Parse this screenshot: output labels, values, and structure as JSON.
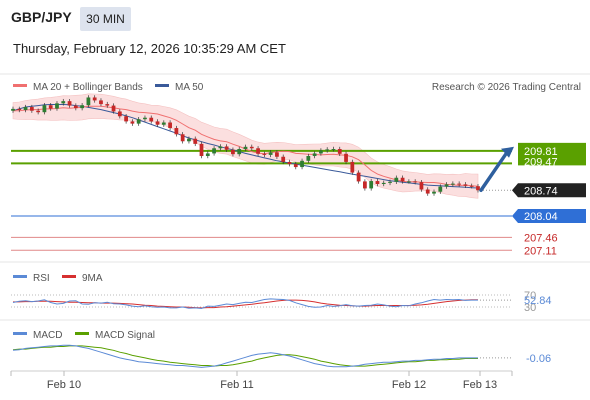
{
  "header": {
    "symbol": "GBP/JPY",
    "timeframe": "30 MIN",
    "datetime": "Thursday, February 12, 2026 10:35:29 AM CET"
  },
  "legend": {
    "ma20": "MA 20 + Bollinger Bands",
    "ma50": "MA 50",
    "credit": "Research © 2026 Trading Central",
    "rsi": "RSI",
    "rsi_ma": "9MA",
    "macd": "MACD",
    "macd_signal": "MACD Signal"
  },
  "colors": {
    "ma20": "#f07070",
    "ma50": "#3a5a9a",
    "bollinger_fill": "#fbdada",
    "resistance": "#5aa000",
    "support": "#2f6fd6",
    "support_secondary": "#e08888",
    "arrow": "#2e5f9e",
    "rsi": "#5b8ad6",
    "rsi_ma": "#d63030",
    "macd": "#5b8ad6",
    "macd_signal": "#5aa000",
    "candle_up": "#2e7d32",
    "candle_down": "#c62828"
  },
  "chart_data": [
    {
      "type": "candlestick",
      "name": "price",
      "x_axis": [
        "Feb 10",
        "Feb 11",
        "Feb 12",
        "Feb 13"
      ],
      "ylim": [
        206.9,
        211.3
      ],
      "levels": [
        {
          "label": "209.81",
          "value": 209.81,
          "kind": "resistance"
        },
        {
          "label": "209.47",
          "value": 209.47,
          "kind": "resistance"
        },
        {
          "label": "208.74",
          "value": 208.74,
          "kind": "last"
        },
        {
          "label": "208.04",
          "value": 208.04,
          "kind": "support"
        },
        {
          "label": "207.46",
          "value": 207.46,
          "kind": "support"
        },
        {
          "label": "207.11",
          "value": 207.11,
          "kind": "support"
        }
      ],
      "close": [
        210.95,
        210.92,
        211.0,
        210.9,
        210.86,
        211.05,
        210.96,
        211.1,
        211.16,
        211.04,
        210.97,
        211.05,
        211.26,
        211.18,
        211.08,
        211.04,
        210.88,
        210.75,
        210.61,
        210.55,
        210.67,
        210.71,
        210.61,
        210.52,
        210.58,
        210.43,
        210.26,
        210.07,
        210.14,
        210.0,
        209.67,
        209.74,
        209.88,
        209.93,
        209.84,
        209.72,
        209.86,
        209.92,
        209.88,
        209.73,
        209.7,
        209.77,
        209.65,
        209.51,
        209.45,
        209.37,
        209.54,
        209.67,
        209.74,
        209.82,
        209.85,
        209.86,
        209.73,
        209.51,
        209.22,
        208.98,
        208.79,
        208.99,
        208.91,
        208.94,
        208.97,
        209.08,
        208.98,
        208.98,
        208.96,
        208.76,
        208.65,
        208.7,
        208.84,
        208.9,
        208.92,
        208.9,
        208.86,
        208.85,
        208.74
      ],
      "ma20": [
        210.9,
        210.9,
        210.92,
        210.93,
        210.93,
        210.95,
        210.95,
        210.96,
        210.98,
        210.97,
        210.98,
        210.99,
        211.02,
        211.02,
        211.02,
        211.0,
        210.98,
        210.95,
        210.93,
        210.89,
        210.86,
        210.85,
        210.83,
        210.81,
        210.76,
        210.71,
        210.64,
        210.54,
        210.44,
        210.37,
        210.26,
        210.19,
        210.12,
        210.08,
        210.06,
        209.99,
        209.93,
        209.86,
        209.79,
        209.75,
        209.73,
        209.76,
        209.79,
        209.8,
        209.79,
        209.74,
        209.73,
        209.72,
        209.71,
        209.7,
        209.71,
        209.72,
        209.7,
        209.69,
        209.65,
        209.57,
        209.43,
        209.28,
        209.18,
        209.12,
        209.07,
        209.02,
        208.98,
        208.97,
        208.97,
        208.96,
        208.95,
        208.95,
        208.93,
        208.9,
        208.89,
        208.87,
        208.88,
        208.86,
        208.85
      ],
      "ma50": [
        210.9,
        210.95,
        211.0,
        211.02,
        211.04,
        211.06,
        211.07,
        211.07,
        211.07,
        211.06,
        211.04,
        211.02,
        210.99,
        210.96,
        210.93,
        210.89,
        210.85,
        210.81,
        210.76,
        210.71,
        210.65,
        210.59,
        210.53,
        210.47,
        210.41,
        210.35,
        210.29,
        210.22,
        210.16,
        210.11,
        210.06,
        210.01,
        209.97,
        209.92,
        209.88,
        209.84,
        209.79,
        209.74,
        209.7,
        209.66,
        209.62,
        209.58,
        209.54,
        209.51,
        209.48,
        209.45,
        209.42,
        209.39,
        209.36,
        209.33,
        209.3,
        209.27,
        209.24,
        209.21,
        209.18,
        209.15,
        209.12,
        209.09,
        209.06,
        209.03,
        209.0,
        208.98,
        208.96,
        208.94,
        208.92,
        208.9,
        208.88,
        208.87,
        208.86,
        208.85,
        208.84,
        208.83,
        208.82,
        208.81,
        208.8
      ]
    },
    {
      "type": "line",
      "name": "RSI",
      "ylim": [
        0,
        100
      ],
      "ticks": [
        "70",
        "30"
      ],
      "last_value": "52.84",
      "series": [
        {
          "name": "RSI",
          "values": [
            45,
            49,
            51,
            48,
            50,
            54,
            45,
            40,
            42,
            50,
            51,
            40,
            39,
            44,
            43,
            46,
            41,
            40,
            37,
            33,
            31,
            34,
            31,
            29,
            30,
            27,
            27,
            30,
            26,
            27,
            25,
            33,
            32,
            36,
            40,
            38,
            42,
            46,
            45,
            50,
            55,
            57,
            56,
            55,
            52,
            44,
            38,
            32,
            29,
            30,
            35,
            32,
            34,
            38,
            34,
            33,
            35,
            36,
            40,
            37,
            33,
            31,
            35,
            34,
            40,
            44,
            50,
            55,
            53,
            55,
            54,
            55,
            52,
            53,
            52.84
          ]
        },
        {
          "name": "9MA",
          "values": [
            47,
            47,
            48,
            48,
            49,
            49,
            49,
            48,
            47,
            46,
            46,
            45,
            44,
            44,
            43,
            43,
            43,
            42,
            41,
            40,
            38,
            36,
            35,
            33,
            32,
            31,
            30,
            30,
            29,
            28,
            27,
            28,
            28,
            30,
            31,
            33,
            35,
            37,
            39,
            42,
            44,
            47,
            50,
            52,
            53,
            53,
            52,
            50,
            47,
            43,
            40,
            38,
            36,
            35,
            34,
            33,
            33,
            34,
            35,
            35,
            35,
            35,
            35,
            35,
            36,
            37,
            39,
            42,
            45,
            48,
            50,
            52,
            53,
            54,
            54
          ]
        }
      ]
    },
    {
      "type": "line",
      "name": "MACD",
      "last_value": "-0.06",
      "series": [
        {
          "name": "MACD",
          "values": [
            0.06,
            0.07,
            0.09,
            0.1,
            0.11,
            0.12,
            0.13,
            0.13,
            0.14,
            0.14,
            0.13,
            0.11,
            0.09,
            0.06,
            0.03,
            0.0,
            -0.03,
            -0.06,
            -0.08,
            -0.1,
            -0.12,
            -0.13,
            -0.14,
            -0.15,
            -0.16,
            -0.17,
            -0.18,
            -0.18,
            -0.19,
            -0.2,
            -0.21,
            -0.2,
            -0.19,
            -0.17,
            -0.14,
            -0.11,
            -0.08,
            -0.05,
            -0.02,
            0.0,
            0.01,
            0.02,
            0.01,
            -0.01,
            -0.03,
            -0.06,
            -0.09,
            -0.12,
            -0.15,
            -0.17,
            -0.19,
            -0.2,
            -0.2,
            -0.2,
            -0.19,
            -0.18,
            -0.16,
            -0.15,
            -0.14,
            -0.13,
            -0.13,
            -0.12,
            -0.11,
            -0.11,
            -0.1,
            -0.1,
            -0.09,
            -0.08,
            -0.08,
            -0.07,
            -0.07,
            -0.06,
            -0.06,
            -0.06,
            -0.06
          ]
        },
        {
          "name": "MACD Signal",
          "values": [
            0.07,
            0.08,
            0.08,
            0.09,
            0.1,
            0.11,
            0.11,
            0.12,
            0.12,
            0.13,
            0.13,
            0.13,
            0.12,
            0.11,
            0.1,
            0.08,
            0.06,
            0.03,
            0.01,
            -0.02,
            -0.04,
            -0.06,
            -0.08,
            -0.1,
            -0.11,
            -0.13,
            -0.14,
            -0.15,
            -0.16,
            -0.17,
            -0.18,
            -0.18,
            -0.19,
            -0.18,
            -0.18,
            -0.17,
            -0.15,
            -0.13,
            -0.11,
            -0.08,
            -0.06,
            -0.04,
            -0.02,
            -0.01,
            -0.01,
            -0.02,
            -0.04,
            -0.06,
            -0.08,
            -0.11,
            -0.13,
            -0.15,
            -0.17,
            -0.18,
            -0.19,
            -0.19,
            -0.19,
            -0.18,
            -0.17,
            -0.16,
            -0.15,
            -0.14,
            -0.13,
            -0.12,
            -0.12,
            -0.11,
            -0.1,
            -0.1,
            -0.09,
            -0.09,
            -0.08,
            -0.08,
            -0.07,
            -0.07,
            -0.07
          ]
        }
      ]
    }
  ]
}
